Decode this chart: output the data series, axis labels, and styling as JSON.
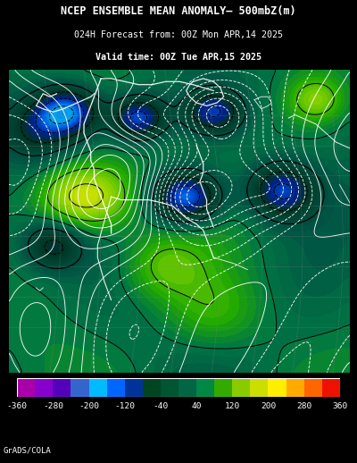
{
  "title_line1": "NCEP ENSEMBLE MEAN ANOMALY– 500mbZ(m)",
  "title_line2": "024H Forecast from: 00Z Mon APR,14 2025",
  "title_line3": "Valid time: 00Z Tue APR,15 2025",
  "colorbar_values": [
    -360,
    -280,
    -200,
    -120,
    -40,
    40,
    120,
    200,
    280,
    360
  ],
  "background_color": "#000000",
  "credit_text": "GrADS/COLA",
  "cb_colors": [
    "#AA00AA",
    "#8800CC",
    "#5500BB",
    "#3366CC",
    "#00BBFF",
    "#0066FF",
    "#003399",
    "#004422",
    "#005533",
    "#006644",
    "#008844",
    "#33AA00",
    "#88CC00",
    "#CCDD00",
    "#FFEE00",
    "#FFAA00",
    "#FF6600",
    "#EE1100"
  ],
  "map_bg": "#1B6B55",
  "title_fontsize": 8.5,
  "subtitle_fontsize": 7.2,
  "credit_fontsize": 6.5
}
